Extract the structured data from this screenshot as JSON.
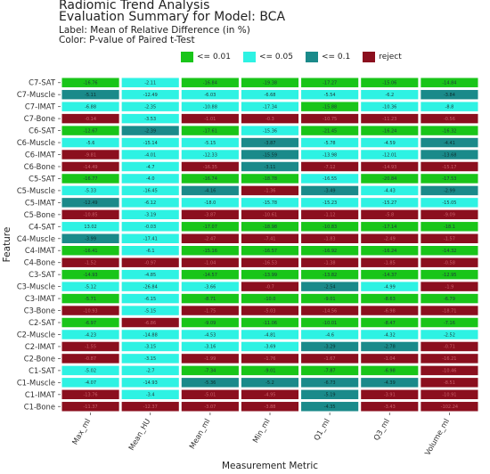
{
  "header": {
    "title": "Radiomic Trend Analysis",
    "subtitle": "Evaluation Summary for Model: BCA",
    "label_line": "Label: Mean of Relative Difference (in %)",
    "color_line": "Color: P-value of Paired t-Test"
  },
  "legend": [
    {
      "label": "<= 0.01",
      "color": "#19c519"
    },
    {
      "label": "<= 0.05",
      "color": "#2ef2e3"
    },
    {
      "label": "<= 0.1",
      "color": "#1a8a8a"
    },
    {
      "label": "reject",
      "color": "#8b0f1e"
    }
  ],
  "chart_data": {
    "type": "heatmap",
    "xlabel": "Measurement Metric",
    "ylabel": "Feature",
    "x_categories": [
      "Max_ml",
      "Mean_HU",
      "Mean_ml",
      "Min_ml",
      "Q1_ml",
      "Q3_ml",
      "Volume_ml"
    ],
    "y_categories": [
      "C7-SAT",
      "C7-Muscle",
      "C7-IMAT",
      "C7-Bone",
      "C6-SAT",
      "C6-Muscle",
      "C6-IMAT",
      "C6-Bone",
      "C5-SAT",
      "C5-Muscle",
      "C5-IMAT",
      "C5-Bone",
      "C4-SAT",
      "C4-Muscle",
      "C4-IMAT",
      "C4-Bone",
      "C3-SAT",
      "C3-Muscle",
      "C3-IMAT",
      "C3-Bone",
      "C2-SAT",
      "C2-Muscle",
      "C2-IMAT",
      "C2-Bone",
      "C1-SAT",
      "C1-Muscle",
      "C1-IMAT",
      "C1-Bone"
    ],
    "cells": [
      [
        [
          "-16.76",
          "a"
        ],
        [
          "-2.11",
          "b"
        ],
        [
          "-16.84",
          "a"
        ],
        [
          "-19.38",
          "a"
        ],
        [
          "-17.27",
          "a"
        ],
        [
          "-15.06",
          "a"
        ],
        [
          "-14.84",
          "a"
        ]
      ],
      [
        [
          "-5.11",
          "c"
        ],
        [
          "-12.49",
          "b"
        ],
        [
          "-6.03",
          "b"
        ],
        [
          "-6.68",
          "b"
        ],
        [
          "-5.54",
          "b"
        ],
        [
          "-6.2",
          "b"
        ],
        [
          "-3.84",
          "c"
        ]
      ],
      [
        [
          "-6.88",
          "b"
        ],
        [
          "-2.35",
          "b"
        ],
        [
          "-10.88",
          "b"
        ],
        [
          "-17.34",
          "b"
        ],
        [
          "-15.88",
          "a"
        ],
        [
          "-10.36",
          "b"
        ],
        [
          "-8.8",
          "b"
        ]
      ],
      [
        [
          "-0.14",
          "d"
        ],
        [
          "-3.53",
          "b"
        ],
        [
          "-1.01",
          "d"
        ],
        [
          "-0.3",
          "d"
        ],
        [
          "-10.75",
          "d"
        ],
        [
          "-11.23",
          "d"
        ],
        [
          "-0.56",
          "d"
        ]
      ],
      [
        [
          "-12.67",
          "a"
        ],
        [
          "-2.39",
          "c"
        ],
        [
          "-17.61",
          "a"
        ],
        [
          "-15.36",
          "b"
        ],
        [
          "-21.45",
          "a"
        ],
        [
          "-16.24",
          "a"
        ],
        [
          "-16.32",
          "a"
        ]
      ],
      [
        [
          "-5.6",
          "b"
        ],
        [
          "-15.14",
          "b"
        ],
        [
          "-5.15",
          "b"
        ],
        [
          "-3.87",
          "c"
        ],
        [
          "-5.78",
          "b"
        ],
        [
          "-4.59",
          "b"
        ],
        [
          "-4.41",
          "c"
        ]
      ],
      [
        [
          "-9.81",
          "d"
        ],
        [
          "-4.01",
          "b"
        ],
        [
          "-12.33",
          "b"
        ],
        [
          "-15.59",
          "c"
        ],
        [
          "-13.98",
          "b"
        ],
        [
          "-12.01",
          "b"
        ],
        [
          "-13.68",
          "c"
        ]
      ],
      [
        [
          "-14.49",
          "d"
        ],
        [
          "-4.7",
          "b"
        ],
        [
          "-16.35",
          "d"
        ],
        [
          "-3.11",
          "c"
        ],
        [
          "-7.12",
          "d"
        ],
        [
          "-14.93",
          "d"
        ],
        [
          "-15.17",
          "d"
        ]
      ],
      [
        [
          "-16.77",
          "a"
        ],
        [
          "-4.0",
          "b"
        ],
        [
          "-16.74",
          "a"
        ],
        [
          "-18.78",
          "a"
        ],
        [
          "-16.55",
          "b"
        ],
        [
          "-20.84",
          "a"
        ],
        [
          "-17.53",
          "a"
        ]
      ],
      [
        [
          "-5.33",
          "b"
        ],
        [
          "-16.45",
          "b"
        ],
        [
          "-4.16",
          "c"
        ],
        [
          "-1.36",
          "d"
        ],
        [
          "-3.49",
          "c"
        ],
        [
          "-4.43",
          "b"
        ],
        [
          "-2.99",
          "c"
        ]
      ],
      [
        [
          "-12.49",
          "c"
        ],
        [
          "-6.12",
          "b"
        ],
        [
          "-18.0",
          "b"
        ],
        [
          "-15.78",
          "b"
        ],
        [
          "-15.23",
          "b"
        ],
        [
          "-15.27",
          "b"
        ],
        [
          "-15.05",
          "b"
        ]
      ],
      [
        [
          "-10.85",
          "d"
        ],
        [
          "-3.19",
          "b"
        ],
        [
          "-3.87",
          "d"
        ],
        [
          "-10.61",
          "d"
        ],
        [
          "-1.12",
          "d"
        ],
        [
          "-5.8",
          "d"
        ],
        [
          "-9.09",
          "d"
        ]
      ],
      [
        [
          "13.02",
          "b"
        ],
        [
          "-0.03",
          "b"
        ],
        [
          "-17.07",
          "a"
        ],
        [
          "-18.98",
          "a"
        ],
        [
          "-10.83",
          "a"
        ],
        [
          "-17.14",
          "a"
        ],
        [
          "-18.1",
          "a"
        ]
      ],
      [
        [
          "-3.99",
          "c"
        ],
        [
          "-17.41",
          "b"
        ],
        [
          "-2.47",
          "d"
        ],
        [
          "-7.41",
          "d"
        ],
        [
          "-1.83",
          "d"
        ],
        [
          "-2.49",
          "d"
        ],
        [
          "-1.57",
          "d"
        ]
      ],
      [
        [
          "-16.41",
          "a"
        ],
        [
          "-6.1",
          "b"
        ],
        [
          "-15.16",
          "a"
        ],
        [
          "-16.57",
          "a"
        ],
        [
          "-16.92",
          "a"
        ],
        [
          "-16.24",
          "a"
        ],
        [
          "-14.32",
          "a"
        ]
      ],
      [
        [
          "-1.52",
          "d"
        ],
        [
          "-0.97",
          "d"
        ],
        [
          "-1.04",
          "d"
        ],
        [
          "-16.53",
          "d"
        ],
        [
          "-1.38",
          "d"
        ],
        [
          "-1.85",
          "d"
        ],
        [
          "-0.58",
          "d"
        ]
      ],
      [
        [
          "-14.93",
          "a"
        ],
        [
          "-4.85",
          "b"
        ],
        [
          "-14.57",
          "a"
        ],
        [
          "-13.99",
          "a"
        ],
        [
          "-13.82",
          "a"
        ],
        [
          "-14.37",
          "a"
        ],
        [
          "-12.95",
          "a"
        ]
      ],
      [
        [
          "-5.12",
          "b"
        ],
        [
          "-26.84",
          "b"
        ],
        [
          "-3.66",
          "b"
        ],
        [
          "-0.7",
          "d"
        ],
        [
          "-2.54",
          "c"
        ],
        [
          "-4.99",
          "b"
        ],
        [
          "-1.9",
          "d"
        ]
      ],
      [
        [
          "-5.71",
          "a"
        ],
        [
          "-6.15",
          "b"
        ],
        [
          "-8.71",
          "a"
        ],
        [
          "-10.0",
          "a"
        ],
        [
          "-9.01",
          "a"
        ],
        [
          "-8.63",
          "a"
        ],
        [
          "-6.79",
          "a"
        ]
      ],
      [
        [
          "-10.93",
          "d"
        ],
        [
          "-5.15",
          "b"
        ],
        [
          "-1.75",
          "d"
        ],
        [
          "-5.03",
          "d"
        ],
        [
          "-14.56",
          "d"
        ],
        [
          "-6.98",
          "d"
        ],
        [
          "-18.71",
          "d"
        ]
      ],
      [
        [
          "-6.97",
          "a"
        ],
        [
          "-6.86",
          "d"
        ],
        [
          "-9.09",
          "a"
        ],
        [
          "-11.06",
          "a"
        ],
        [
          "-10.01",
          "a"
        ],
        [
          "-8.47",
          "a"
        ],
        [
          "-7.16",
          "a"
        ]
      ],
      [
        [
          "-4.23",
          "b"
        ],
        [
          "-14.88",
          "b"
        ],
        [
          "-4.53",
          "b"
        ],
        [
          "-4.81",
          "b"
        ],
        [
          "-4.6",
          "b"
        ],
        [
          "-4.32",
          "b"
        ],
        [
          "-2.52",
          "b"
        ]
      ],
      [
        [
          "-1.55",
          "d"
        ],
        [
          "-3.15",
          "b"
        ],
        [
          "-3.16",
          "b"
        ],
        [
          "-3.69",
          "b"
        ],
        [
          "-3.29",
          "c"
        ],
        [
          "-2.78",
          "c"
        ],
        [
          "-0.71",
          "d"
        ]
      ],
      [
        [
          "-0.87",
          "d"
        ],
        [
          "-3.15",
          "b"
        ],
        [
          "-1.99",
          "d"
        ],
        [
          "-1.76",
          "d"
        ],
        [
          "-1.67",
          "d"
        ],
        [
          "-1.04",
          "d"
        ],
        [
          "-16.21",
          "d"
        ]
      ],
      [
        [
          "-5.02",
          "b"
        ],
        [
          "-2.7",
          "b"
        ],
        [
          "-7.34",
          "a"
        ],
        [
          "-9.01",
          "a"
        ],
        [
          "-7.87",
          "a"
        ],
        [
          "-6.98",
          "a"
        ],
        [
          "-10.46",
          "d"
        ]
      ],
      [
        [
          "-4.07",
          "b"
        ],
        [
          "-14.93",
          "b"
        ],
        [
          "-5.36",
          "c"
        ],
        [
          "-5.2",
          "c"
        ],
        [
          "-6.73",
          "c"
        ],
        [
          "-4.39",
          "c"
        ],
        [
          "-8.51",
          "d"
        ]
      ],
      [
        [
          "-13.76",
          "d"
        ],
        [
          "-3.4",
          "b"
        ],
        [
          "-5.01",
          "d"
        ],
        [
          "-4.95",
          "d"
        ],
        [
          "-5.19",
          "c"
        ],
        [
          "-3.91",
          "d"
        ],
        [
          "-10.91",
          "d"
        ]
      ],
      [
        [
          "-11.37",
          "d"
        ],
        [
          "-12.37",
          "d"
        ],
        [
          "-3.07",
          "d"
        ],
        [
          "-3.88",
          "d"
        ],
        [
          "-4.35",
          "c"
        ],
        [
          "-3.43",
          "d"
        ],
        [
          "-102.24",
          "d"
        ]
      ]
    ],
    "color_codes": {
      "a": "#19c519",
      "b": "#2ef2e3",
      "c": "#1a8a8a",
      "d": "#8b0f1e"
    },
    "grid": false
  }
}
